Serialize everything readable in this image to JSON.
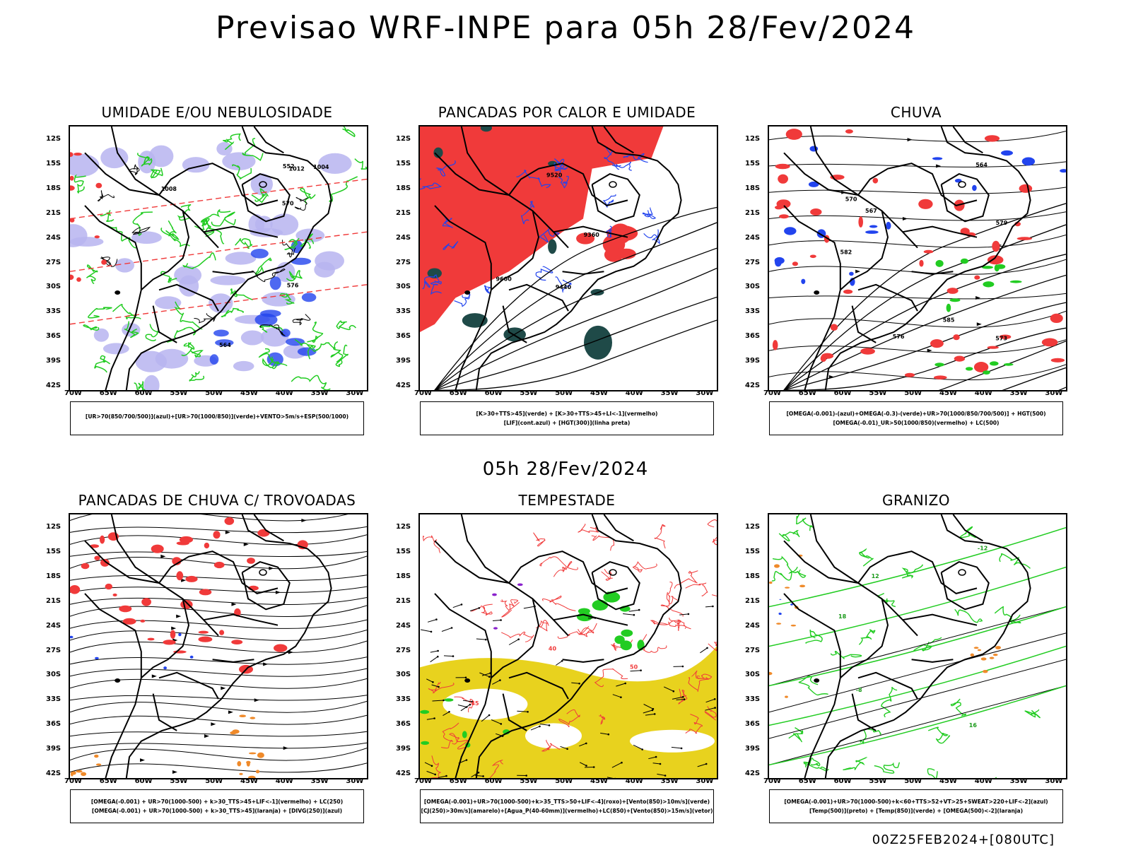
{
  "main_title": "Previsao WRF-INPE  para 05h 28/Fev/2024",
  "mid_title": "05h 28/Fev/2024",
  "footer": "00Z25FEB2024+[080UTC]",
  "lat_labels": [
    "12S",
    "15S",
    "18S",
    "21S",
    "24S",
    "27S",
    "30S",
    "33S",
    "36S",
    "39S",
    "42S"
  ],
  "lon_labels": [
    "70W",
    "65W",
    "60W",
    "55W",
    "50W",
    "45W",
    "40W",
    "35W",
    "30W"
  ],
  "colors": {
    "red": "#f03a3a",
    "green": "#22cc22",
    "blue": "#2244ee",
    "lavender": "#b7b4f0",
    "yellow": "#e8d21e",
    "darkteal": "#1f4a48",
    "orange": "#ef8a2a",
    "purple": "#8a22cc"
  },
  "panels": [
    {
      "title": "UMIDADE E/OU NEBULOSIDADE",
      "legend": [
        "[UR>70(850/700/500)](azul)+[UR>70(1000/850)](verde)+VENTO>5m/s+ESP(500/1000)"
      ],
      "contour_labels": [
        "1012",
        "1008",
        "1004",
        "576",
        "570",
        "564",
        "552"
      ]
    },
    {
      "title": "PANCADAS POR CALOR E UMIDADE",
      "legend": [
        "[K>30+TTS>45](verde)  +  [K>30+TTS>45+LI<-1](vermelho)",
        "[LIF](cont.azul)  +  [HGT(300)](linha preta)"
      ],
      "contour_labels": [
        "9600",
        "9520",
        "9440",
        "9360"
      ]
    },
    {
      "title": "CHUVA",
      "legend": [
        "[OMEGA(-0.001)-(azul)+OMEGA(-0.3)-(verde)+UR>70(1000/850/700/500)]  +  HGT(500)",
        "[OMEGA(-0.01)_UR>50(1000/850)(vermelho)  +  LC(500)"
      ],
      "contour_labels": [
        "585",
        "582",
        "579",
        "576",
        "573",
        "570",
        "567",
        "564"
      ]
    },
    {
      "title": "PANCADAS DE CHUVA C/ TROVOADAS",
      "legend": [
        "[OMEGA(-0.001)  +  UR>70(1000-500)  +  k>30_TTS>45+LIF<-1](vermelho)  +  LC(250)",
        "[OMEGA(-0.001)  +  UR>70(1000-500)  +  k>30_TTS>45](laranja)  +  [DIVG(250)](azul)"
      ],
      "contour_labels": []
    },
    {
      "title": "TEMPESTADE",
      "legend": [
        "[OMEGA(-0.001)+UR>70(1000-500)+k>35_TTS>50+LIF<-4](roxo)+[Vento(850)>10m/s](verde)",
        "[CJ(250)>30m/s](amarelo)+[Agua_P(40-60mm)](vermelho)+LC(850)+[Vento(850)>15m/s](vetor)"
      ],
      "contour_labels": [
        "40",
        "45",
        "50"
      ]
    },
    {
      "title": "GRANIZO",
      "legend": [
        "[OMEGA(-0.001)+UR>70(1000-500)+k<60+TTS>52+VT>25+SWEAT>220+LIF<-2](azul)",
        "[Temp(500)](preto)  +  [Temp(850)](verde)  +  [OMEGA(500)<-2](laranja)"
      ],
      "contour_labels": [
        "-12",
        "-8",
        "12",
        "16",
        "18"
      ]
    }
  ]
}
